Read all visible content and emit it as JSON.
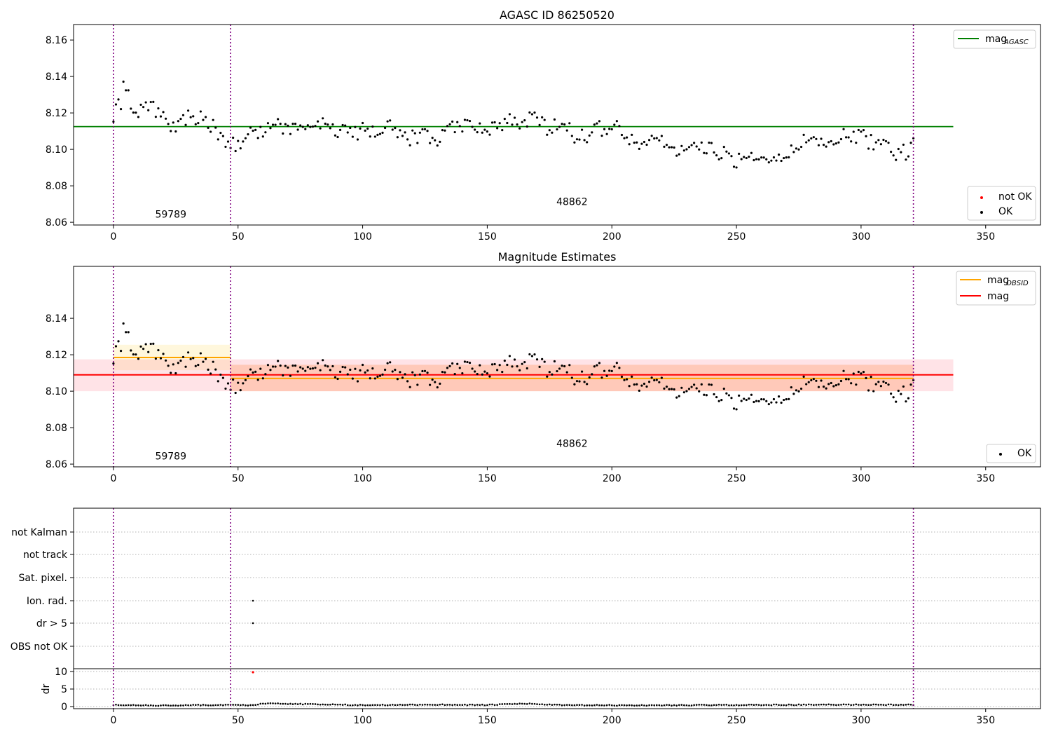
{
  "chart_data": [
    {
      "type": "scatter",
      "title": "AGASC ID 86250520",
      "xlim": [
        -16,
        372
      ],
      "ylim": [
        8.0585,
        8.1685
      ],
      "xticks": [
        0,
        50,
        100,
        150,
        200,
        250,
        300,
        350
      ],
      "yticks": [
        8.06,
        8.08,
        8.1,
        8.12,
        8.14,
        8.16
      ],
      "ytick_labels": [
        "8.06",
        "8.08",
        "8.10",
        "8.12",
        "8.14",
        "8.16"
      ],
      "obs_boundaries": [
        0,
        47,
        321
      ],
      "annotations": [
        {
          "text": "59789",
          "x": 23,
          "y": 8.0625
        },
        {
          "text": "48862",
          "x": 184,
          "y": 8.0695
        }
      ],
      "hlines": [
        {
          "y": 8.1125,
          "x0": -16,
          "x1": 337,
          "color": "#008000"
        }
      ],
      "legend_lines": [
        {
          "label": "mag",
          "sub": "AGASC",
          "color": "#008000"
        }
      ],
      "legend_points": [
        {
          "label": "not OK",
          "color": "#ff0000"
        },
        {
          "label": "OK",
          "color": "#000000"
        }
      ],
      "series": [
        {
          "name": "not OK",
          "color": "#ff0000",
          "points": []
        },
        {
          "name": "OK",
          "color": "#000000",
          "model": "mag"
        }
      ]
    },
    {
      "type": "scatter",
      "title": "Magnitude Estimates",
      "xlim": [
        -16,
        372
      ],
      "ylim": [
        8.0585,
        8.1685
      ],
      "xticks": [
        0,
        50,
        100,
        150,
        200,
        250,
        300,
        350
      ],
      "yticks": [
        8.06,
        8.08,
        8.1,
        8.12,
        8.14
      ],
      "ytick_labels": [
        "8.06",
        "8.08",
        "8.10",
        "8.12",
        "8.14"
      ],
      "obs_boundaries": [
        0,
        47,
        321
      ],
      "annotations": [
        {
          "text": "59789",
          "x": 23,
          "y": 8.0625
        },
        {
          "text": "48862",
          "x": 184,
          "y": 8.0695
        }
      ],
      "bands": [
        {
          "x0": 0,
          "x1": 47,
          "y0": 8.1115,
          "y1": 8.1255,
          "color": "#ffe89a",
          "opacity": 0.35
        },
        {
          "x0": 47,
          "x1": 321,
          "y0": 8.1,
          "y1": 8.1145,
          "color": "#ffb070",
          "opacity": 0.45
        },
        {
          "x0": -16,
          "x1": 337,
          "y0": 8.1,
          "y1": 8.1175,
          "color": "#ff9aa8",
          "opacity": 0.28
        }
      ],
      "hlines": [
        {
          "y": 8.1185,
          "x0": 0,
          "x1": 47,
          "color": "#ffa500"
        },
        {
          "y": 8.107,
          "x0": 47,
          "x1": 321,
          "color": "#ffa500"
        },
        {
          "y": 8.109,
          "x0": -16,
          "x1": 337,
          "color": "#ff0000"
        }
      ],
      "legend_lines": [
        {
          "label": "mag",
          "sub": "OBSID",
          "color": "#ffa500"
        },
        {
          "label": "mag",
          "sub": "",
          "color": "#ff0000"
        }
      ],
      "legend_points": [
        {
          "label": "OK",
          "color": "#000000"
        }
      ],
      "series": [
        {
          "name": "OK",
          "color": "#000000",
          "model": "mag"
        }
      ]
    },
    {
      "type": "scatter",
      "xlim": [
        -16,
        372
      ],
      "xticks": [
        0,
        50,
        100,
        150,
        200,
        250,
        300,
        350
      ],
      "obs_boundaries": [
        0,
        47,
        321
      ],
      "flag_categories": [
        "not Kalman",
        "not track",
        "Sat. pixel.",
        "Ion. rad.",
        "dr > 5",
        "OBS not OK"
      ],
      "flag_points": [
        {
          "category": "Ion. rad.",
          "x": 56
        },
        {
          "category": "dr > 5",
          "x": 56
        }
      ],
      "dr_ylabel": "dr",
      "dr_ylim": [
        -0.6,
        10.6
      ],
      "dr_yticks": [
        0,
        5,
        10
      ],
      "dr_outlier": {
        "x": 56,
        "y": 9.8,
        "color": "#ff0000"
      },
      "dr_model": "dr"
    }
  ],
  "model": {
    "n": 322,
    "mag_keys": [
      [
        0,
        8.114
      ],
      [
        1,
        8.122
      ],
      [
        3,
        8.125
      ],
      [
        4,
        8.138
      ],
      [
        6,
        8.128
      ],
      [
        9,
        8.122
      ],
      [
        12,
        8.12
      ],
      [
        15,
        8.124
      ],
      [
        20,
        8.117
      ],
      [
        25,
        8.112
      ],
      [
        30,
        8.118
      ],
      [
        35,
        8.117
      ],
      [
        40,
        8.112
      ],
      [
        45,
        8.104
      ],
      [
        50,
        8.103
      ],
      [
        55,
        8.109
      ],
      [
        60,
        8.11
      ],
      [
        65,
        8.114
      ],
      [
        70,
        8.112
      ],
      [
        75,
        8.112
      ],
      [
        80,
        8.112
      ],
      [
        85,
        8.115
      ],
      [
        90,
        8.11
      ],
      [
        95,
        8.108
      ],
      [
        100,
        8.111
      ],
      [
        105,
        8.11
      ],
      [
        110,
        8.113
      ],
      [
        115,
        8.107
      ],
      [
        120,
        8.106
      ],
      [
        125,
        8.109
      ],
      [
        130,
        8.103
      ],
      [
        135,
        8.112
      ],
      [
        140,
        8.114
      ],
      [
        145,
        8.11
      ],
      [
        150,
        8.112
      ],
      [
        155,
        8.114
      ],
      [
        160,
        8.115
      ],
      [
        165,
        8.116
      ],
      [
        170,
        8.118
      ],
      [
        175,
        8.11
      ],
      [
        180,
        8.117
      ],
      [
        185,
        8.108
      ],
      [
        190,
        8.108
      ],
      [
        195,
        8.111
      ],
      [
        200,
        8.114
      ],
      [
        205,
        8.11
      ],
      [
        210,
        8.103
      ],
      [
        215,
        8.103
      ],
      [
        220,
        8.106
      ],
      [
        225,
        8.1
      ],
      [
        230,
        8.099
      ],
      [
        235,
        8.101
      ],
      [
        240,
        8.099
      ],
      [
        245,
        8.098
      ],
      [
        250,
        8.094
      ],
      [
        255,
        8.099
      ],
      [
        260,
        8.097
      ],
      [
        265,
        8.094
      ],
      [
        270,
        8.098
      ],
      [
        275,
        8.102
      ],
      [
        280,
        8.106
      ],
      [
        285,
        8.105
      ],
      [
        290,
        8.104
      ],
      [
        295,
        8.109
      ],
      [
        300,
        8.107
      ],
      [
        305,
        8.103
      ],
      [
        310,
        8.102
      ],
      [
        315,
        8.097
      ],
      [
        320,
        8.1
      ],
      [
        321,
        8.105
      ]
    ],
    "mag_scatter": 0.0045,
    "dr_keys": [
      [
        0,
        0.45
      ],
      [
        20,
        0.3
      ],
      [
        40,
        0.45
      ],
      [
        56,
        0.4
      ],
      [
        60,
        0.9
      ],
      [
        100,
        0.4
      ],
      [
        130,
        0.55
      ],
      [
        150,
        0.45
      ],
      [
        165,
        0.85
      ],
      [
        180,
        0.4
      ],
      [
        210,
        0.35
      ],
      [
        250,
        0.45
      ],
      [
        300,
        0.55
      ],
      [
        321,
        0.5
      ]
    ],
    "dr_scatter": 0.12
  }
}
